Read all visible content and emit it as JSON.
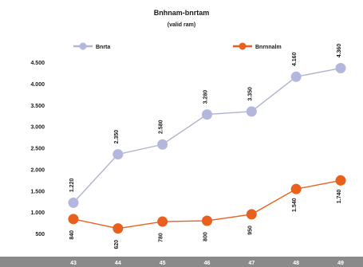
{
  "chart_data": {
    "type": "line",
    "title": "Bnhnam-bnrtam",
    "subtitle": "(valid ram)",
    "categories": [
      "43",
      "44",
      "45",
      "46",
      "47",
      "48",
      "49"
    ],
    "ylim": [
      0,
      4500
    ],
    "yticks": [
      "500",
      "1.000",
      "1.500",
      "2.000",
      "2.500",
      "3.000",
      "3.500",
      "4.000",
      "4.500"
    ],
    "grid": false,
    "legend_position": "top",
    "series": [
      {
        "name": "Bnrta",
        "color": "#b3b7dd",
        "values": [
          1220,
          2350,
          2580,
          3280,
          3350,
          4160,
          4360
        ],
        "labels": [
          "1.220",
          "2.350",
          "2.580",
          "3.280",
          "3.350",
          "4.160",
          "4.360"
        ]
      },
      {
        "name": "Bnrnnalm",
        "color": "#e8601c",
        "values": [
          840,
          620,
          780,
          800,
          950,
          1540,
          1740
        ],
        "labels": [
          "840",
          "620",
          "780",
          "800",
          "950",
          "1.540",
          "1.740"
        ]
      }
    ]
  }
}
